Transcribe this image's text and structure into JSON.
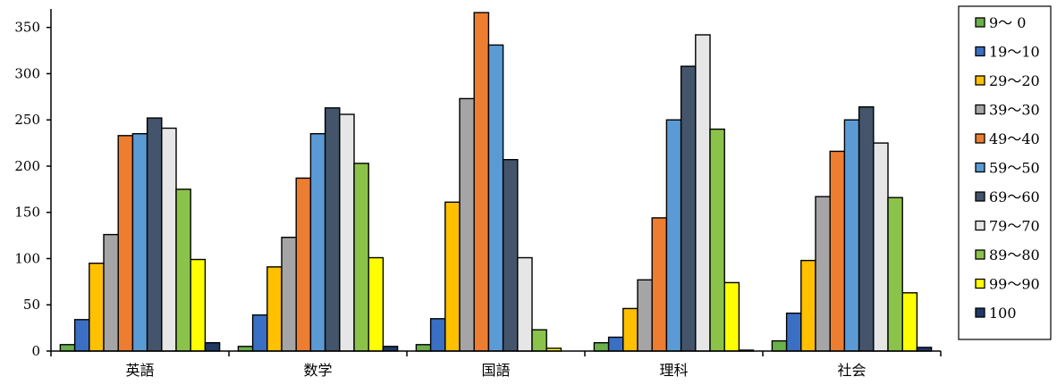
{
  "chart_data": {
    "type": "bar",
    "title": "",
    "xlabel": "",
    "ylabel": "",
    "ylim": [
      0,
      370
    ],
    "yticks": [
      0,
      50,
      100,
      150,
      200,
      250,
      300,
      350
    ],
    "grid": false,
    "legend_position": "right",
    "categories": [
      "英語",
      "数学",
      "国語",
      "理科",
      "社会"
    ],
    "series": [
      {
        "name": "9～ 0",
        "color": "#6ab04c",
        "values": [
          7,
          5,
          7,
          9,
          11
        ]
      },
      {
        "name": "19～10",
        "color": "#3a6fc4",
        "values": [
          34,
          39,
          35,
          15,
          41
        ]
      },
      {
        "name": "29～20",
        "color": "#ffc000",
        "values": [
          95,
          91,
          161,
          46,
          98
        ]
      },
      {
        "name": "39～30",
        "color": "#a5a5a5",
        "values": [
          126,
          123,
          273,
          77,
          167
        ]
      },
      {
        "name": "49～40",
        "color": "#ed7d31",
        "values": [
          233,
          187,
          366,
          144,
          216
        ]
      },
      {
        "name": "59～50",
        "color": "#5b9bd5",
        "values": [
          235,
          235,
          331,
          250,
          250
        ]
      },
      {
        "name": "69～60",
        "color": "#44546a",
        "values": [
          252,
          263,
          207,
          308,
          264
        ]
      },
      {
        "name": "79～70",
        "color": "#e7e6e6",
        "values": [
          241,
          256,
          101,
          342,
          225
        ]
      },
      {
        "name": "89～80",
        "color": "#8bc34a",
        "values": [
          175,
          203,
          23,
          240,
          166
        ]
      },
      {
        "name": "99～90",
        "color": "#ffff00",
        "values": [
          99,
          101,
          3,
          74,
          63
        ]
      },
      {
        "name": "100",
        "color": "#1f3864",
        "values": [
          9,
          5,
          0,
          1,
          4
        ]
      }
    ]
  }
}
